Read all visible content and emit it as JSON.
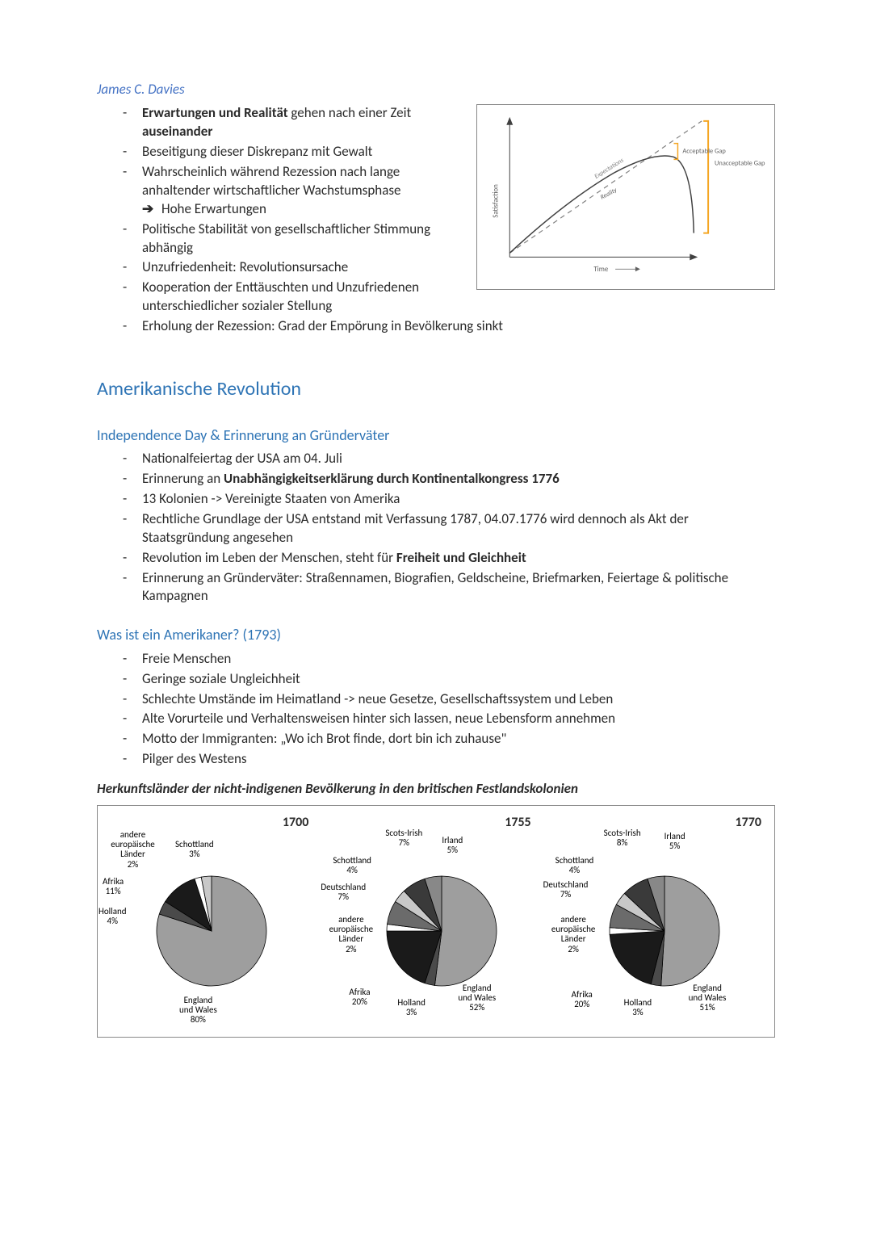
{
  "author": "James C. Davies",
  "davies_bullets": {
    "b1a": "Erwartungen und Realität",
    "b1b": " gehen nach einer Zeit ",
    "b1c": "auseinander",
    "b2": "Beseitigung dieser Diskrepanz mit Gewalt",
    "b3": "Wahrscheinlich während Rezession nach lange anhaltender wirtschaftlicher Wachstumsphase",
    "b3sub": "Hohe Erwartungen",
    "b4": "Politische Stabilität von gesellschaftlicher Stimmung abhängig",
    "b5": "Unzufriedenheit: Revolutionsursache",
    "b6": "Kooperation der Enttäuschten und Unzufriedenen unterschiedlicher sozialer Stellung",
    "b7": "Erholung der Rezession: Grad der Empörung in Bevölkerung sinkt"
  },
  "jcurve": {
    "ylabel": "Satisfaction",
    "xlabel": "Time",
    "line1": "Expectations",
    "line2": "Reality",
    "gap1": "Acceptable Gap",
    "gap2": "Unacceptable Gap",
    "axis_color": "#404040",
    "expect_color": "#808080",
    "reality_color": "#404040",
    "gap_color": "#f5a623"
  },
  "section2": "Amerikanische Revolution",
  "sub2a": "Independence Day & Erinnerung an Gründerväter",
  "indep_bullets": {
    "b1": "Nationalfeiertag der USA am 04. Juli",
    "b2a": "Erinnerung an ",
    "b2b": "Unabhängigkeitserklärung durch Kontinentalkongress 1776",
    "b3": "13 Kolonien -> Vereinigte Staaten von Amerika",
    "b4": "Rechtliche Grundlage der USA entstand mit Verfassung 1787, 04.07.1776 wird dennoch als Akt der Staatsgründung angesehen",
    "b5a": "Revolution im Leben der Menschen, steht für ",
    "b5b": "Freiheit und Gleichheit",
    "b6": "Erinnerung an Gründerväter: Straßennamen, Biografien, Geldscheine, Briefmarken, Feiertage & politische Kampagnen"
  },
  "sub2b": "Was ist ein Amerikaner? (1793)",
  "amer_bullets": {
    "b1": "Freie Menschen",
    "b2": "Geringe soziale Ungleichheit",
    "b3": "Schlechte Umstände im Heimatland -> neue Gesetze, Gesellschaftssystem und Leben",
    "b4": "Alte Vorurteile und Verhaltensweisen hinter sich lassen, neue Lebensform annehmen",
    "b5": "Motto der Immigranten: „Wo ich Brot finde, dort bin ich zuhause\"",
    "b6": "Pilger des Westens"
  },
  "pie_heading": "Herkunftsländer der nicht-indigenen Bevölkerung in den britischen Festlandskolonien",
  "pies": {
    "colors": {
      "england": "#9e9e9e",
      "holland": "#4a4a4a",
      "afrika": "#1a1a1a",
      "schottland": "#c8c8c8",
      "andere": "#ffffff",
      "deutschland": "#6b6b6b",
      "scotsirish": "#3a3a3a",
      "irland": "#888888",
      "stroke": "#000000"
    },
    "y1700": {
      "year": "1700",
      "slices": [
        {
          "label": "England und Wales",
          "pct": 80,
          "key": "england"
        },
        {
          "label": "Holland",
          "pct": 4,
          "key": "holland"
        },
        {
          "label": "Afrika",
          "pct": 11,
          "key": "afrika"
        },
        {
          "label": "andere europäische Länder",
          "pct": 2,
          "key": "andere"
        },
        {
          "label": "Schottland",
          "pct": 3,
          "key": "schottland"
        }
      ],
      "labels": {
        "england": "England\nund Wales\n80%",
        "holland": "Holland\n4%",
        "afrika": "Afrika\n11%",
        "andere": "andere\neuropäische\nLänder\n2%",
        "schottland": "Schottland\n3%"
      }
    },
    "y1755": {
      "year": "1755",
      "slices": [
        {
          "label": "England und Wales",
          "pct": 52,
          "key": "england"
        },
        {
          "label": "Holland",
          "pct": 3,
          "key": "holland"
        },
        {
          "label": "Afrika",
          "pct": 20,
          "key": "afrika"
        },
        {
          "label": "andere europäische Länder",
          "pct": 2,
          "key": "andere"
        },
        {
          "label": "Deutschland",
          "pct": 7,
          "key": "deutschland"
        },
        {
          "label": "Schottland",
          "pct": 4,
          "key": "schottland"
        },
        {
          "label": "Scots-Irish",
          "pct": 7,
          "key": "scotsirish"
        },
        {
          "label": "Irland",
          "pct": 5,
          "key": "irland"
        }
      ],
      "labels": {
        "england": "England\nund Wales\n52%",
        "holland": "Holland\n3%",
        "afrika": "Afrika\n20%",
        "andere": "andere\neuropäische\nLänder\n2%",
        "deutschland": "Deutschland\n7%",
        "schottland": "Schottland\n4%",
        "scotsirish": "Scots-Irish\n7%",
        "irland": "Irland\n5%"
      }
    },
    "y1770": {
      "year": "1770",
      "slices": [
        {
          "label": "England und Wales",
          "pct": 51,
          "key": "england"
        },
        {
          "label": "Holland",
          "pct": 3,
          "key": "holland"
        },
        {
          "label": "Afrika",
          "pct": 20,
          "key": "afrika"
        },
        {
          "label": "andere europäische Länder",
          "pct": 2,
          "key": "andere"
        },
        {
          "label": "Deutschland",
          "pct": 7,
          "key": "deutschland"
        },
        {
          "label": "Schottland",
          "pct": 4,
          "key": "schottland"
        },
        {
          "label": "Scots-Irish",
          "pct": 8,
          "key": "scotsirish"
        },
        {
          "label": "Irland",
          "pct": 5,
          "key": "irland"
        }
      ],
      "labels": {
        "england": "England\nund Wales\n51%",
        "holland": "Holland\n3%",
        "afrika": "Afrika\n20%",
        "andere": "andere\neuropäische\nLänder\n2%",
        "deutschland": "Deutschland\n7%",
        "schottland": "Schottland\n4%",
        "scotsirish": "Scots-Irish\n8%",
        "irland": "Irland\n5%"
      }
    }
  }
}
